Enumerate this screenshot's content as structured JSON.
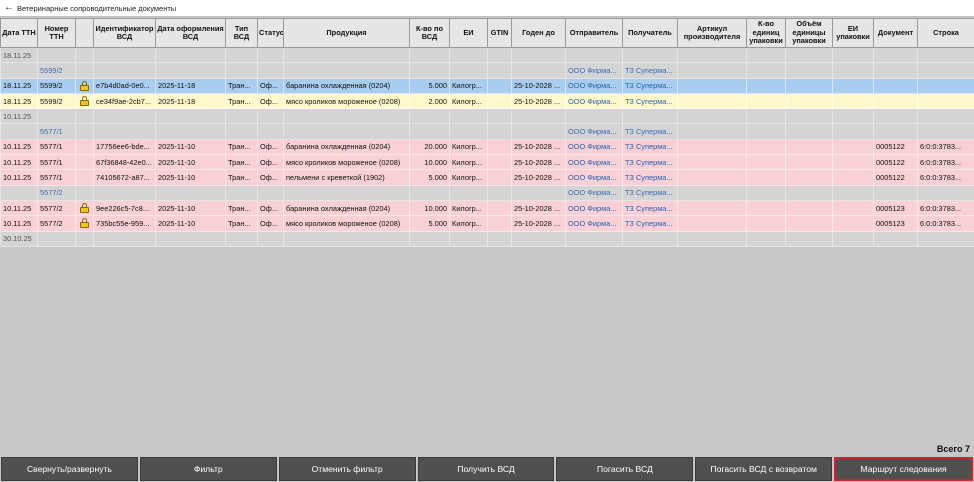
{
  "window": {
    "title": "Ветеринарные сопроводительные документы",
    "back_icon": "arrow-left-icon"
  },
  "columns": [
    "Дата ТТН",
    "Номер ТТН",
    "",
    "Идентификатор ВСД",
    "Дата оформления ВСД",
    "Тип ВСД",
    "Статус",
    "Продукция",
    "К-во по ВСД",
    "ЕИ",
    "GTIN",
    "Годен до",
    "Отправитель",
    "Получатель",
    "Артикул производителя",
    "К-во единиц упаковки",
    "Объём единицы упаковки",
    "ЕИ упаковки",
    "Документ",
    "Строка"
  ],
  "rows": [
    {
      "kind": "date",
      "cells": [
        "18.11.25",
        "",
        "",
        "",
        "",
        "",
        "",
        "",
        "",
        "",
        "",
        "",
        "",
        "",
        "",
        "",
        "",
        "",
        "",
        ""
      ]
    },
    {
      "kind": "group",
      "cells": [
        "",
        "5599/2",
        "",
        "",
        "",
        "",
        "",
        "",
        "",
        "",
        "",
        "",
        "ООО Фирма...",
        "ТЗ Суперма...",
        "",
        "",
        "",
        "",
        "",
        ""
      ]
    },
    {
      "kind": "sel",
      "lock": true,
      "cells": [
        "18.11.25",
        "5599/2",
        "",
        "e7b4d0ad-0e0...",
        "2025-11-18",
        "Тран...",
        "Оф...",
        "баранина охлажденная (0204)",
        "5.000",
        "Килогр...",
        "",
        "25-10-2028 ...",
        "ООО Фирма...",
        "ТЗ Суперма...",
        "",
        "",
        "",
        "",
        "",
        ""
      ]
    },
    {
      "kind": "yellow",
      "lock": true,
      "cells": [
        "18.11.25",
        "5599/2",
        "",
        "ce34f9ae-2cb7...",
        "2025-11-18",
        "Тран...",
        "Оф...",
        "мясо кроликов мороженое (0208)",
        "2.000",
        "Килогр...",
        "",
        "25-10-2028 ...",
        "ООО Фирма...",
        "ТЗ Суперма...",
        "",
        "",
        "",
        "",
        "",
        ""
      ]
    },
    {
      "kind": "date",
      "cells": [
        "10.11.25",
        "",
        "",
        "",
        "",
        "",
        "",
        "",
        "",
        "",
        "",
        "",
        "",
        "",
        "",
        "",
        "",
        "",
        "",
        ""
      ]
    },
    {
      "kind": "group",
      "cells": [
        "",
        "5577/1",
        "",
        "",
        "",
        "",
        "",
        "",
        "",
        "",
        "",
        "",
        "ООО Фирма...",
        "ТЗ Суперма...",
        "",
        "",
        "",
        "",
        "",
        ""
      ]
    },
    {
      "kind": "pink",
      "lock": false,
      "cells": [
        "10.11.25",
        "5577/1",
        "",
        "17756ee6-bde...",
        "2025-11-10",
        "Тран...",
        "Оф...",
        "баранина охлажденная (0204)",
        "20.000",
        "Килогр...",
        "",
        "25-10-2028 ...",
        "ООО Фирма...",
        "ТЗ Суперма...",
        "",
        "",
        "",
        "",
        "0005122",
        "6:0:0:3783..."
      ]
    },
    {
      "kind": "pink",
      "lock": false,
      "cells": [
        "10.11.25",
        "5577/1",
        "",
        "67f36848-42e0...",
        "2025-11-10",
        "Тран...",
        "Оф...",
        "мясо кроликов мороженое (0208)",
        "10.000",
        "Килогр...",
        "",
        "25-10-2028 ...",
        "ООО Фирма...",
        "ТЗ Суперма...",
        "",
        "",
        "",
        "",
        "0005122",
        "6:0:0:3783..."
      ]
    },
    {
      "kind": "pink",
      "lock": false,
      "cells": [
        "10.11.25",
        "5577/1",
        "",
        "74105672-a87...",
        "2025-11-10",
        "Тран...",
        "Оф...",
        "пельмени с креветкой (1902)",
        "5.000",
        "Килогр...",
        "",
        "25-10-2028 ...",
        "ООО Фирма...",
        "ТЗ Суперма...",
        "",
        "",
        "",
        "",
        "0005122",
        "6:0:0:3783..."
      ]
    },
    {
      "kind": "group",
      "cells": [
        "",
        "5577/2",
        "",
        "",
        "",
        "",
        "",
        "",
        "",
        "",
        "",
        "",
        "ООО Фирма...",
        "ТЗ Суперма...",
        "",
        "",
        "",
        "",
        "",
        ""
      ]
    },
    {
      "kind": "pink",
      "lock": true,
      "cells": [
        "10.11.25",
        "5577/2",
        "",
        "9ee226c5-7c8...",
        "2025-11-10",
        "Тран...",
        "Оф...",
        "баранина охлажденная (0204)",
        "10.000",
        "Килогр...",
        "",
        "25-10-2028 ...",
        "ООО Фирма...",
        "ТЗ Суперма...",
        "",
        "",
        "",
        "",
        "0005123",
        "6:0:0:3783..."
      ]
    },
    {
      "kind": "pink",
      "lock": true,
      "cells": [
        "10.11.25",
        "5577/2",
        "",
        "735bc55e-959...",
        "2025-11-10",
        "Тран...",
        "Оф...",
        "мясо кроликов мороженое (0208)",
        "5.000",
        "Килогр...",
        "",
        "25-10-2028 ...",
        "ООО Фирма...",
        "ТЗ Суперма...",
        "",
        "",
        "",
        "",
        "0005123",
        "6:0:0:3783..."
      ]
    },
    {
      "kind": "date",
      "cells": [
        "30.10.25",
        "",
        "",
        "",
        "",
        "",
        "",
        "",
        "",
        "",
        "",
        "",
        "",
        "",
        "",
        "",
        "",
        "",
        "",
        ""
      ]
    }
  ],
  "total_label": "Всего 7",
  "buttons": [
    {
      "label": "Свернуть/развернуть",
      "name": "collapse-expand-button",
      "active": false
    },
    {
      "label": "Фильтр",
      "name": "filter-button",
      "active": false
    },
    {
      "label": "Отменить фильтр",
      "name": "cancel-filter-button",
      "active": false
    },
    {
      "label": "Получить ВСД",
      "name": "get-vsd-button",
      "active": false
    },
    {
      "label": "Погасить ВСД",
      "name": "redeem-vsd-button",
      "active": false
    },
    {
      "label": "Погасить ВСД с возвратом",
      "name": "redeem-vsd-return-button",
      "active": false
    },
    {
      "label": "Маршрут следования",
      "name": "route-button",
      "active": true
    }
  ],
  "colors": {
    "selected_row": "#a8cdee",
    "yellow_row": "#fff9cc",
    "pink_row": "#f8d0d6",
    "link": "#3b6fb5",
    "active_border": "#d2232a"
  }
}
